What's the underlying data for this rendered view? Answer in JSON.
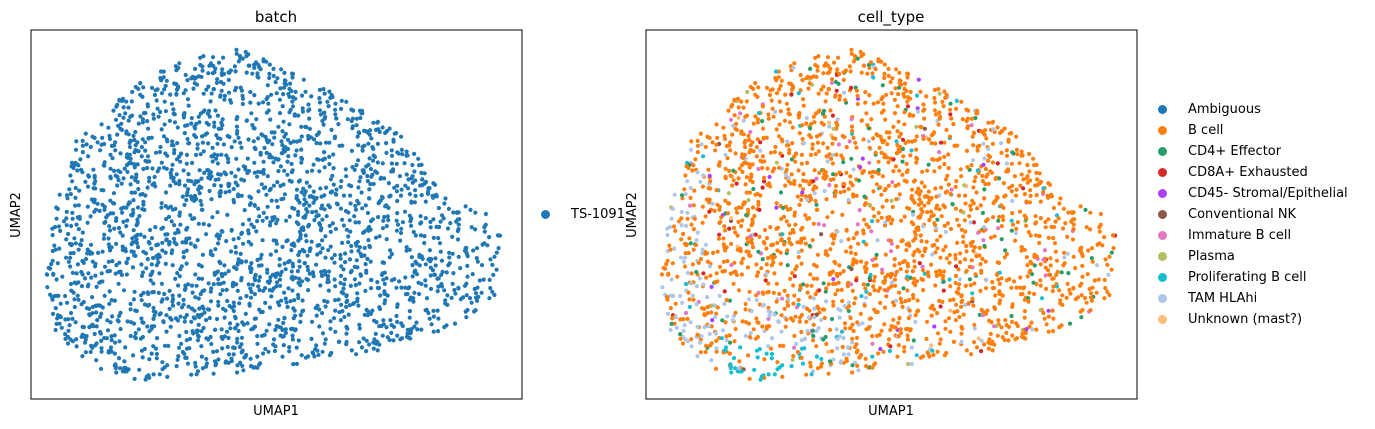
{
  "chart_data": [
    {
      "type": "scatter",
      "title": "batch",
      "xlabel": "UMAP1",
      "ylabel": "UMAP2",
      "grid": false,
      "ticks": false,
      "legend_position": "right",
      "legend": [
        {
          "name": "TS-1091",
          "color": "#1f77b4"
        }
      ],
      "series": [
        {
          "name": "TS-1091",
          "color": "#1f77b4",
          "share": 1.0
        }
      ]
    },
    {
      "type": "scatter",
      "title": "cell_type",
      "xlabel": "UMAP1",
      "ylabel": "UMAP2",
      "grid": false,
      "ticks": false,
      "legend_position": "right",
      "legend": [
        {
          "name": "Ambiguous",
          "color": "#1f77b4"
        },
        {
          "name": "B cell",
          "color": "#ff7f0e"
        },
        {
          "name": "CD4+ Effector",
          "color": "#279e68"
        },
        {
          "name": "CD8A+ Exhausted",
          "color": "#d62728"
        },
        {
          "name": "CD45- Stromal/Epithelial",
          "color": "#aa40fc"
        },
        {
          "name": "Conventional NK",
          "color": "#8c564b"
        },
        {
          "name": "Immature B cell",
          "color": "#e377c2"
        },
        {
          "name": "Plasma",
          "color": "#b5bd61"
        },
        {
          "name": "Proliferating B cell",
          "color": "#17becf"
        },
        {
          "name": "TAM HLAhi",
          "color": "#aec7e8"
        },
        {
          "name": "Unknown (mast?)",
          "color": "#ffbb78"
        }
      ],
      "series": [
        {
          "name": "B cell",
          "color": "#ff7f0e",
          "share": 0.8
        },
        {
          "name": "CD4+ Effector",
          "color": "#279e68",
          "share": 0.05
        },
        {
          "name": "TAM HLAhi",
          "color": "#aec7e8",
          "share": 0.05
        },
        {
          "name": "Immature B cell",
          "color": "#e377c2",
          "share": 0.03
        },
        {
          "name": "Proliferating B cell",
          "color": "#17becf",
          "share": 0.02
        },
        {
          "name": "CD8A+ Exhausted",
          "color": "#d62728",
          "share": 0.02
        },
        {
          "name": "CD45- Stromal/Epithelial",
          "color": "#aa40fc",
          "share": 0.01
        },
        {
          "name": "Plasma",
          "color": "#b5bd61",
          "share": 0.01
        },
        {
          "name": "Conventional NK",
          "color": "#8c564b",
          "share": 0.005
        },
        {
          "name": "Unknown (mast?)",
          "color": "#ffbb78",
          "share": 0.005
        }
      ]
    }
  ]
}
